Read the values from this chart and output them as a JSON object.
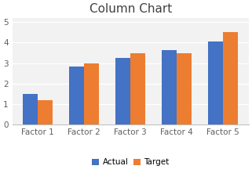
{
  "title": "Column Chart",
  "categories": [
    "Factor 1",
    "Factor 2",
    "Factor 3",
    "Factor 4",
    "Factor 5"
  ],
  "actual": [
    1.5,
    2.85,
    3.25,
    3.65,
    4.05
  ],
  "target": [
    1.2,
    3.0,
    3.5,
    3.5,
    4.5
  ],
  "actual_color": "#4472C4",
  "target_color": "#ED7D31",
  "legend_labels": [
    "Actual",
    "Target"
  ],
  "ylim": [
    0,
    5.2
  ],
  "yticks": [
    0,
    1,
    2,
    3,
    4,
    5
  ],
  "title_fontsize": 11,
  "tick_fontsize": 7.5,
  "legend_fontsize": 7.5,
  "bar_width": 0.32,
  "background_color": "#ffffff",
  "plot_bg_color": "#f2f2f2",
  "grid_color": "#ffffff",
  "spine_color": "#c0c0c0"
}
